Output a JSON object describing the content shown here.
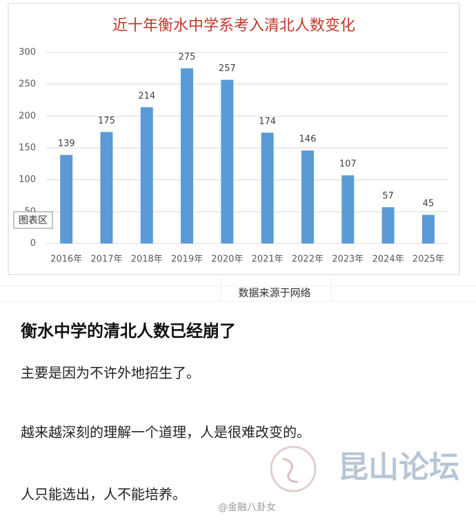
{
  "chart_data": {
    "type": "bar",
    "title": "近十年衡水中学系考入清北人数变化",
    "categories": [
      "2016年",
      "2017年",
      "2018年",
      "2019年",
      "2020年",
      "2021年",
      "2022年",
      "2023年",
      "2024年",
      "2025年"
    ],
    "values": [
      139,
      175,
      214,
      275,
      257,
      174,
      146,
      107,
      57,
      45
    ],
    "color": "#5b9bd5",
    "ylim": [
      0,
      300
    ],
    "yticks": [
      0,
      50,
      100,
      150,
      200,
      250,
      300
    ],
    "grid": true,
    "tooltip": "图表区",
    "source": "数据来源于网络"
  },
  "post": {
    "heading": "衡水中学的清北人数已经崩了",
    "paragraphs": [
      "主要是因为不许外地招生了。",
      "越来越深刻的理解一个道理，人是很难改变的。",
      "人只能选出，人不能培养。"
    ]
  },
  "watermarks": {
    "forum": "昆山论坛",
    "author": "@金融八卦女"
  }
}
